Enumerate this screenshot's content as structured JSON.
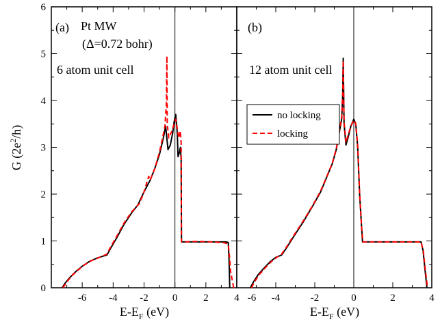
{
  "chart_data": [
    {
      "type": "line",
      "panel_label": "(a)",
      "annotations": [
        "Pt MW",
        "(Δ=0.72 bohr)",
        "6 atom unit cell"
      ],
      "ylabel": "G (2e²/h)",
      "ylabel_parts": {
        "main": "G (2e",
        "sup": "2",
        "tail": "/h)"
      },
      "xlabel": "E-E_F (eV)",
      "xlabel_parts": {
        "main": "E-E",
        "sub": "F",
        "tail": " (eV)"
      },
      "xlim": [
        -8,
        4
      ],
      "ylim": [
        0,
        6
      ],
      "xticks": [
        -6,
        -4,
        -2,
        0,
        2,
        4
      ],
      "yticks": [
        0,
        1,
        2,
        3,
        4,
        5,
        6
      ],
      "vline_x": 0,
      "series": [
        {
          "name": "no locking",
          "color": "#000000",
          "dash": "solid",
          "points": [
            [
              -7.3,
              0
            ],
            [
              -7.1,
              0.1
            ],
            [
              -6.8,
              0.22
            ],
            [
              -6.4,
              0.35
            ],
            [
              -6.0,
              0.46
            ],
            [
              -5.5,
              0.57
            ],
            [
              -5.0,
              0.64
            ],
            [
              -4.4,
              0.7
            ],
            [
              -4.2,
              0.82
            ],
            [
              -3.8,
              1.05
            ],
            [
              -3.3,
              1.35
            ],
            [
              -2.8,
              1.6
            ],
            [
              -2.4,
              1.77
            ],
            [
              -2.0,
              2.05
            ],
            [
              -1.6,
              2.3
            ],
            [
              -1.3,
              2.55
            ],
            [
              -1.0,
              2.85
            ],
            [
              -0.75,
              3.2
            ],
            [
              -0.6,
              3.45
            ],
            [
              -0.45,
              2.95
            ],
            [
              -0.3,
              3.05
            ],
            [
              -0.15,
              3.3
            ],
            [
              -0.05,
              3.55
            ],
            [
              0.05,
              3.7
            ],
            [
              0.15,
              3.3
            ],
            [
              0.2,
              2.8
            ],
            [
              0.3,
              2.9
            ],
            [
              0.35,
              3.0
            ],
            [
              0.4,
              2.75
            ],
            [
              0.42,
              0.98
            ],
            [
              1.5,
              0.98
            ],
            [
              2.5,
              0.98
            ],
            [
              3.3,
              0.98
            ],
            [
              3.45,
              0.97
            ],
            [
              3.5,
              0.6
            ],
            [
              3.55,
              0.0
            ]
          ]
        },
        {
          "name": "locking",
          "color": "#ff0000",
          "dash": "dashed",
          "points": [
            [
              -7.25,
              0
            ],
            [
              -7.0,
              0.12
            ],
            [
              -6.7,
              0.25
            ],
            [
              -6.3,
              0.37
            ],
            [
              -5.9,
              0.48
            ],
            [
              -5.4,
              0.58
            ],
            [
              -4.8,
              0.66
            ],
            [
              -4.4,
              0.72
            ],
            [
              -4.2,
              0.85
            ],
            [
              -3.8,
              1.08
            ],
            [
              -3.3,
              1.38
            ],
            [
              -2.8,
              1.62
            ],
            [
              -2.3,
              1.8
            ],
            [
              -2.0,
              2.05
            ],
            [
              -1.7,
              2.38
            ],
            [
              -1.6,
              2.3
            ],
            [
              -1.3,
              2.55
            ],
            [
              -1.0,
              2.9
            ],
            [
              -0.8,
              3.2
            ],
            [
              -0.65,
              3.45
            ],
            [
              -0.55,
              3.95
            ],
            [
              -0.52,
              4.95
            ],
            [
              -0.5,
              3.5
            ],
            [
              -0.4,
              3.2
            ],
            [
              -0.2,
              3.35
            ],
            [
              -0.05,
              3.5
            ],
            [
              0.05,
              3.6
            ],
            [
              0.15,
              3.4
            ],
            [
              0.25,
              3.2
            ],
            [
              0.35,
              3.35
            ],
            [
              0.4,
              3.1
            ],
            [
              0.42,
              0.98
            ],
            [
              1.5,
              0.99
            ],
            [
              2.5,
              0.98
            ],
            [
              3.2,
              0.96
            ],
            [
              3.45,
              0.93
            ],
            [
              3.55,
              0.6
            ],
            [
              3.6,
              0.35
            ],
            [
              3.8,
              0.0
            ]
          ]
        }
      ]
    },
    {
      "type": "line",
      "panel_label": "(b)",
      "annotations": [
        "12 atom unit cell"
      ],
      "xlabel": "E-E_F (eV)",
      "xlabel_parts": {
        "main": "E-E",
        "sub": "F",
        "tail": " (eV)"
      },
      "xlim": [
        -6,
        4
      ],
      "ylim": [
        0,
        6
      ],
      "xticks": [
        -4,
        -2,
        0,
        2,
        4
      ],
      "xticks_labeled": [
        -6,
        -4,
        -2,
        0,
        2,
        4
      ],
      "yticks": [
        0,
        1,
        2,
        3,
        4,
        5,
        6
      ],
      "vline_x": 0,
      "legend": {
        "position": "upper-left",
        "entries": [
          "no locking",
          "locking"
        ]
      },
      "series": [
        {
          "name": "no locking",
          "color": "#000000",
          "dash": "solid",
          "points": [
            [
              -5.3,
              0
            ],
            [
              -5.15,
              0.12
            ],
            [
              -4.9,
              0.28
            ],
            [
              -4.6,
              0.42
            ],
            [
              -4.3,
              0.55
            ],
            [
              -4.0,
              0.65
            ],
            [
              -3.7,
              0.7
            ],
            [
              -3.5,
              0.82
            ],
            [
              -3.1,
              1.08
            ],
            [
              -2.6,
              1.4
            ],
            [
              -2.1,
              1.75
            ],
            [
              -1.7,
              2.05
            ],
            [
              -1.4,
              2.35
            ],
            [
              -1.1,
              2.65
            ],
            [
              -0.9,
              2.95
            ],
            [
              -0.75,
              3.3
            ],
            [
              -0.62,
              3.6
            ],
            [
              -0.57,
              4.1
            ],
            [
              -0.54,
              4.9
            ],
            [
              -0.5,
              3.5
            ],
            [
              -0.4,
              3.05
            ],
            [
              -0.3,
              3.2
            ],
            [
              -0.15,
              3.45
            ],
            [
              0.0,
              3.6
            ],
            [
              0.1,
              3.5
            ],
            [
              0.2,
              3.0
            ],
            [
              0.3,
              2.0
            ],
            [
              0.4,
              1.3
            ],
            [
              0.45,
              0.98
            ],
            [
              1.5,
              0.98
            ],
            [
              2.5,
              0.98
            ],
            [
              3.2,
              0.98
            ],
            [
              3.45,
              0.98
            ],
            [
              3.55,
              0.8
            ],
            [
              3.65,
              0.4
            ],
            [
              3.75,
              0.0
            ]
          ]
        },
        {
          "name": "locking",
          "color": "#ff0000",
          "dash": "dashed",
          "points": [
            [
              -5.25,
              0
            ],
            [
              -5.1,
              0.12
            ],
            [
              -4.85,
              0.28
            ],
            [
              -4.55,
              0.42
            ],
            [
              -4.25,
              0.55
            ],
            [
              -3.95,
              0.65
            ],
            [
              -3.7,
              0.72
            ],
            [
              -3.5,
              0.84
            ],
            [
              -3.1,
              1.1
            ],
            [
              -2.6,
              1.42
            ],
            [
              -2.1,
              1.76
            ],
            [
              -1.7,
              2.07
            ],
            [
              -1.4,
              2.36
            ],
            [
              -1.1,
              2.66
            ],
            [
              -0.9,
              2.97
            ],
            [
              -0.75,
              3.32
            ],
            [
              -0.62,
              3.65
            ],
            [
              -0.57,
              4.15
            ],
            [
              -0.54,
              4.85
            ],
            [
              -0.5,
              3.55
            ],
            [
              -0.4,
              3.1
            ],
            [
              -0.3,
              3.25
            ],
            [
              -0.15,
              3.45
            ],
            [
              0.0,
              3.58
            ],
            [
              0.1,
              3.5
            ],
            [
              0.2,
              3.05
            ],
            [
              0.3,
              2.05
            ],
            [
              0.4,
              1.3
            ],
            [
              0.47,
              0.98
            ],
            [
              1.5,
              0.98
            ],
            [
              2.5,
              0.98
            ],
            [
              3.2,
              0.98
            ],
            [
              3.45,
              0.98
            ],
            [
              3.57,
              0.78
            ],
            [
              3.67,
              0.38
            ],
            [
              3.78,
              0.0
            ]
          ]
        }
      ]
    }
  ]
}
